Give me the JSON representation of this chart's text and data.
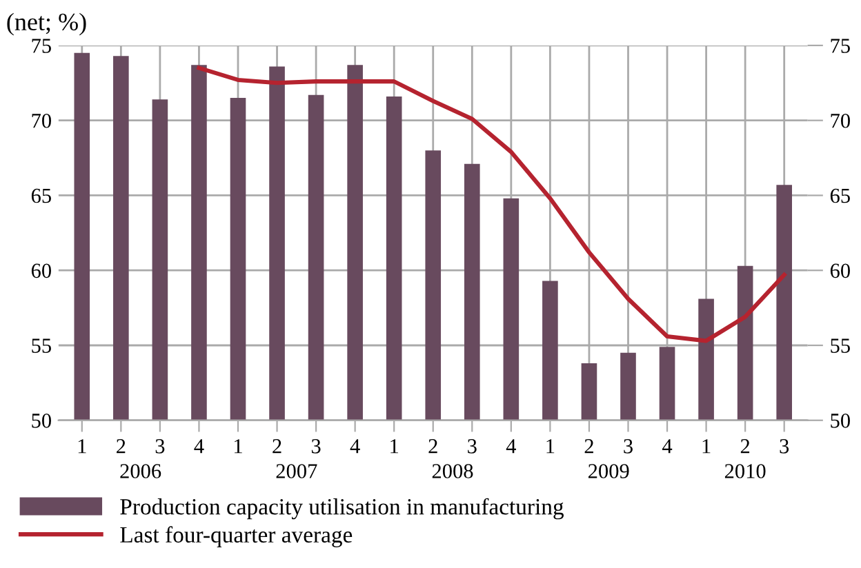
{
  "chart_data": {
    "type": "bar",
    "title": "(net; %)",
    "categories": [
      "1",
      "2",
      "3",
      "4",
      "1",
      "2",
      "3",
      "4",
      "1",
      "2",
      "3",
      "4",
      "1",
      "2",
      "3",
      "4",
      "1",
      "2",
      "3"
    ],
    "series": [
      {
        "name": "Production capacity utilisation in manufacturing",
        "color": "#684a5e",
        "values": [
          74.5,
          74.3,
          71.4,
          73.7,
          71.5,
          73.6,
          71.7,
          73.7,
          71.6,
          68.0,
          67.1,
          64.8,
          59.3,
          53.8,
          54.5,
          54.9,
          58.1,
          60.3,
          65.7
        ]
      },
      {
        "name": "Last four-quarter average",
        "type": "line",
        "color": "#b5232f",
        "values": [
          null,
          null,
          null,
          73.5,
          72.7,
          72.5,
          72.6,
          72.6,
          72.6,
          71.3,
          70.1,
          67.9,
          64.8,
          61.2,
          58.1,
          55.6,
          55.3,
          56.9,
          59.7
        ]
      }
    ],
    "annotations": [
      "2006",
      "2007",
      "2008",
      "2009",
      "2010"
    ],
    "ylim": [
      50,
      75
    ],
    "yticks": [
      50,
      55,
      60,
      65,
      70,
      75
    ],
    "y2lim": [
      50,
      75
    ],
    "y2ticks": [
      50,
      55,
      60,
      65,
      70,
      75
    ],
    "grid": true,
    "legend": "bottom",
    "marker": "none",
    "line_style": "solid"
  }
}
